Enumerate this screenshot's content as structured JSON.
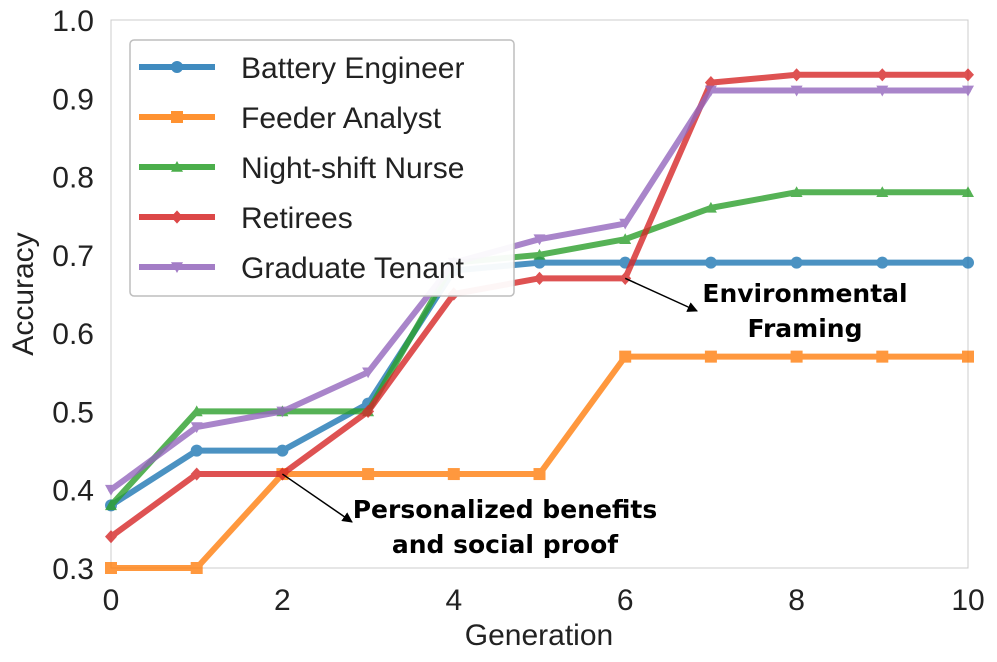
{
  "chart_data": {
    "type": "line",
    "title": "",
    "xlabel": "Generation",
    "ylabel": "Accuracy",
    "xlim": [
      0,
      10
    ],
    "ylim": [
      0.3,
      1.0
    ],
    "xticks": [
      "0",
      "2",
      "4",
      "6",
      "8",
      "10"
    ],
    "yticks": [
      "0.3",
      "0.4",
      "0.5",
      "0.6",
      "0.7",
      "0.8",
      "0.9",
      "1.0"
    ],
    "grid": false,
    "legend_position": "top-left",
    "x": [
      0,
      1,
      2,
      3,
      4,
      5,
      6,
      7,
      8,
      9,
      10
    ],
    "series": [
      {
        "name": "Battery Engineer",
        "color": "#1f77b4",
        "marker": "circle",
        "values": [
          0.38,
          0.45,
          0.45,
          0.51,
          0.68,
          0.69,
          0.69,
          0.69,
          0.69,
          0.69,
          0.69
        ]
      },
      {
        "name": "Feeder Analyst",
        "color": "#ff7f0e",
        "marker": "square",
        "values": [
          0.3,
          0.3,
          0.42,
          0.42,
          0.42,
          0.42,
          0.57,
          0.57,
          0.57,
          0.57,
          0.57
        ]
      },
      {
        "name": "Night-shift Nurse",
        "color": "#2ca02c",
        "marker": "triangle-up",
        "values": [
          0.38,
          0.5,
          0.5,
          0.5,
          0.69,
          0.7,
          0.72,
          0.76,
          0.78,
          0.78,
          0.78
        ]
      },
      {
        "name": "Retirees",
        "color": "#d62728",
        "marker": "diamond",
        "values": [
          0.34,
          0.42,
          0.42,
          0.5,
          0.65,
          0.67,
          0.67,
          0.92,
          0.93,
          0.93,
          0.93
        ]
      },
      {
        "name": "Graduate Tenant",
        "color": "#9467bd",
        "marker": "triangle-down",
        "values": [
          0.4,
          0.48,
          0.5,
          0.55,
          0.69,
          0.72,
          0.74,
          0.91,
          0.91,
          0.91,
          0.91
        ]
      }
    ],
    "annotations": [
      {
        "lines": [
          "Personalized benefits",
          "and social proof"
        ],
        "point": {
          "x": 2,
          "y": 0.42
        }
      },
      {
        "lines": [
          "Environmental",
          "Framing"
        ],
        "point": {
          "x": 6,
          "y": 0.67
        }
      }
    ]
  }
}
